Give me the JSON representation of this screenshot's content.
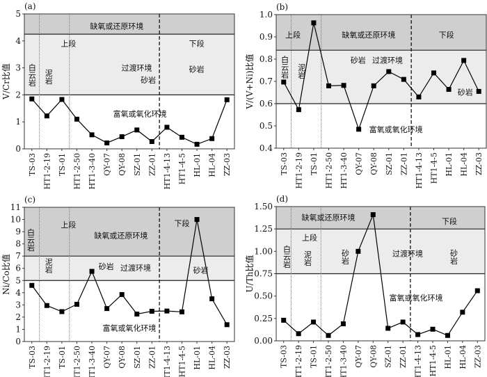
{
  "colors": {
    "anoxic": "#cfcfcf",
    "transitional": "#ececec",
    "oxic": "#ffffff",
    "line": "#000000"
  },
  "chart_data": [
    {
      "type": "line",
      "panel": "(a)",
      "ylabel": "V/Cr比值",
      "ylim": [
        0,
        5
      ],
      "yticks": [
        "0",
        "1",
        "2",
        "3",
        "4",
        "5"
      ],
      "categories": [
        "TS-03",
        "HT1-2-19",
        "TS-01",
        "HT1-2-50",
        "HT1-3-40",
        "QY-07",
        "QY-08",
        "SZ-01",
        "ZZ-01",
        "HT1-4-13",
        "HT1-4-5",
        "HL-01",
        "HL-04",
        "ZZ-03"
      ],
      "values": [
        1.85,
        1.22,
        1.83,
        1.1,
        0.52,
        0.22,
        0.45,
        0.7,
        0.27,
        0.8,
        0.43,
        0.17,
        0.38,
        1.82
      ],
      "bands": {
        "anoxic": [
          4.25,
          5
        ],
        "transitional": [
          2,
          4.25
        ]
      },
      "annotations": [
        "缺氧或还原环境",
        "上段",
        "白云岩",
        "泥岩",
        "过渡环境",
        "砂岩",
        "下段",
        "砂岩",
        "富氧或氧化环境"
      ]
    },
    {
      "type": "line",
      "panel": "(b)",
      "ylabel": "V/(V+Ni)比值",
      "ylim": [
        0.4,
        1.0
      ],
      "yticks": [
        "0.4",
        "0.5",
        "0.6",
        "0.7",
        "0.8",
        "0.9",
        "1.0"
      ],
      "categories": [
        "TS-03",
        "HT1-2-19",
        "TS-01",
        "HT1-2-50",
        "HT1-3-40",
        "QY-07",
        "QY-08",
        "SZ-01",
        "ZZ-01",
        "HT1-4-13",
        "HT1-4-5",
        "HL-01",
        "HL-04",
        "ZZ-03"
      ],
      "values": [
        0.697,
        0.573,
        0.963,
        0.68,
        0.682,
        0.485,
        0.68,
        0.744,
        0.709,
        0.63,
        0.738,
        0.664,
        0.794,
        0.655
      ],
      "bands": {
        "anoxic": [
          0.84,
          1.0
        ],
        "transitional": [
          0.6,
          0.84
        ]
      },
      "annotations": [
        "上段",
        "缺氧或还原环境",
        "下段",
        "白云岩",
        "泥岩",
        "砂岩",
        "过渡环境",
        "砂岩",
        "富氧或氧化环境"
      ]
    },
    {
      "type": "line",
      "panel": "(c)",
      "ylabel": "Ni/Co比值",
      "ylim": [
        0,
        11
      ],
      "yticks": [
        "0",
        "1",
        "2",
        "3",
        "4",
        "5",
        "6",
        "7",
        "8",
        "9",
        "10",
        "11"
      ],
      "categories": [
        "TS-03",
        "HT1-2-19",
        "TS-01",
        "HT1-2-50",
        "HT1-3-40",
        "QY-07",
        "QY-08",
        "SZ-01",
        "ZZ-01",
        "HT1-4-13",
        "HT1-4-5",
        "HL-01",
        "HL-04",
        "ZZ-03"
      ],
      "values": [
        4.6,
        2.95,
        2.45,
        3.05,
        5.75,
        2.7,
        3.85,
        2.25,
        2.48,
        2.5,
        2.43,
        10,
        3.5,
        1.38
      ],
      "bands": {
        "anoxic": [
          7,
          11
        ],
        "transitional": [
          5,
          7
        ]
      },
      "annotations": [
        "上段",
        "缺氧或还原环境",
        "下段",
        "白云岩",
        "泥岩",
        "砂岩",
        "过渡环境",
        "砂岩",
        "富氧或氧化环境"
      ]
    },
    {
      "type": "line",
      "panel": "(d)",
      "ylabel": "U/Th比值",
      "ylim": [
        0,
        1.5
      ],
      "yticks": [
        "0.00",
        "0.25",
        "0.50",
        "0.75",
        "1.00",
        "1.25",
        "1.50"
      ],
      "categories": [
        "TS-03",
        "HT1-2-19",
        "TS-01",
        "HT1-2-50",
        "HT1-3-40",
        "QY-07",
        "QY-08",
        "SZ-01",
        "ZZ-01",
        "HT1-4-13",
        "HT1-4-5",
        "HL-01",
        "HL-04",
        "ZZ-03"
      ],
      "values": [
        0.23,
        0.08,
        0.21,
        0.06,
        0.19,
        1.0,
        1.41,
        0.14,
        0.21,
        0.07,
        0.13,
        0.06,
        0.32,
        0.56
      ],
      "bands": {
        "anoxic": [
          1.25,
          1.5
        ],
        "transitional": [
          0.75,
          1.25
        ]
      },
      "annotations": [
        "缺氧或还原环境",
        "下段",
        "上段",
        "白云岩",
        "泥岩",
        "砂岩",
        "过渡环境",
        "砂岩",
        "富氧或氧化环境"
      ]
    }
  ]
}
